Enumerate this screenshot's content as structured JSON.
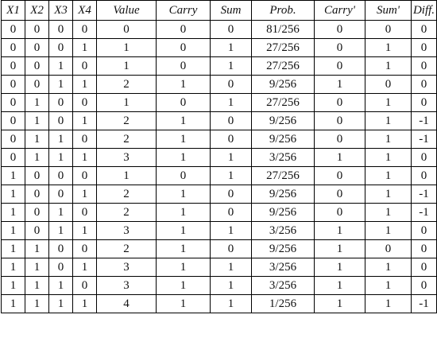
{
  "table": {
    "headers": [
      "X1",
      "X2",
      "X3",
      "X4",
      "Value",
      "Carry",
      "Sum",
      "Prob.",
      "Carry'",
      "Sum'",
      "Diff."
    ],
    "rows": [
      [
        "0",
        "0",
        "0",
        "0",
        "0",
        "0",
        "0",
        "81/256",
        "0",
        "0",
        "0"
      ],
      [
        "0",
        "0",
        "0",
        "1",
        "1",
        "0",
        "1",
        "27/256",
        "0",
        "1",
        "0"
      ],
      [
        "0",
        "0",
        "1",
        "0",
        "1",
        "0",
        "1",
        "27/256",
        "0",
        "1",
        "0"
      ],
      [
        "0",
        "0",
        "1",
        "1",
        "2",
        "1",
        "0",
        "9/256",
        "1",
        "0",
        "0"
      ],
      [
        "0",
        "1",
        "0",
        "0",
        "1",
        "0",
        "1",
        "27/256",
        "0",
        "1",
        "0"
      ],
      [
        "0",
        "1",
        "0",
        "1",
        "2",
        "1",
        "0",
        "9/256",
        "0",
        "1",
        "-1"
      ],
      [
        "0",
        "1",
        "1",
        "0",
        "2",
        "1",
        "0",
        "9/256",
        "0",
        "1",
        "-1"
      ],
      [
        "0",
        "1",
        "1",
        "1",
        "3",
        "1",
        "1",
        "3/256",
        "1",
        "1",
        "0"
      ],
      [
        "1",
        "0",
        "0",
        "0",
        "1",
        "0",
        "1",
        "27/256",
        "0",
        "1",
        "0"
      ],
      [
        "1",
        "0",
        "0",
        "1",
        "2",
        "1",
        "0",
        "9/256",
        "0",
        "1",
        "-1"
      ],
      [
        "1",
        "0",
        "1",
        "0",
        "2",
        "1",
        "0",
        "9/256",
        "0",
        "1",
        "-1"
      ],
      [
        "1",
        "0",
        "1",
        "1",
        "3",
        "1",
        "1",
        "3/256",
        "1",
        "1",
        "0"
      ],
      [
        "1",
        "1",
        "0",
        "0",
        "2",
        "1",
        "0",
        "9/256",
        "1",
        "0",
        "0"
      ],
      [
        "1",
        "1",
        "0",
        "1",
        "3",
        "1",
        "1",
        "3/256",
        "1",
        "1",
        "0"
      ],
      [
        "1",
        "1",
        "1",
        "0",
        "3",
        "1",
        "1",
        "3/256",
        "1",
        "1",
        "0"
      ],
      [
        "1",
        "1",
        "1",
        "1",
        "4",
        "1",
        "1",
        "1/256",
        "1",
        "1",
        "-1"
      ]
    ]
  }
}
